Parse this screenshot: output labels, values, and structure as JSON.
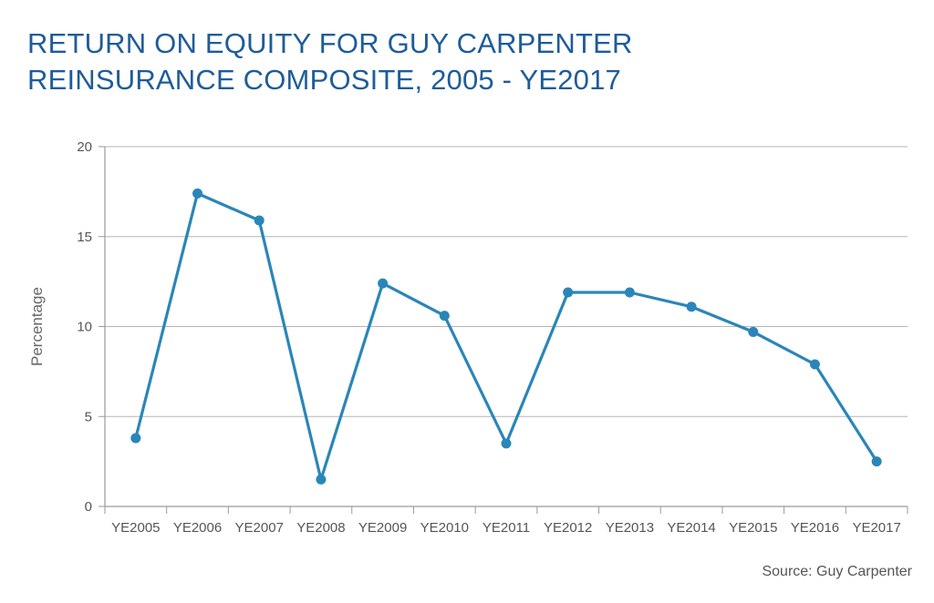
{
  "chart_data": {
    "type": "line",
    "title_lines": [
      "RETURN ON EQUITY FOR GUY CARPENTER",
      "REINSURANCE COMPOSITE, 2005 - YE2017"
    ],
    "ylabel": "Percentage",
    "xlabel": "",
    "categories": [
      "YE2005",
      "YE2006",
      "YE2007",
      "YE2008",
      "YE2009",
      "YE2010",
      "YE2011",
      "YE2012",
      "YE2013",
      "YE2014",
      "YE2015",
      "YE2016",
      "YE2017"
    ],
    "series": [
      {
        "values": [
          3.8,
          17.4,
          15.9,
          1.5,
          12.4,
          10.6,
          3.5,
          11.9,
          11.9,
          11.1,
          9.7,
          7.9,
          2.5
        ]
      }
    ],
    "ylim": [
      0,
      20
    ],
    "yticks": [
      0,
      5,
      10,
      15,
      20
    ],
    "grid": true,
    "line_color": "#2a86b8",
    "source": "Source: Guy Carpenter"
  }
}
